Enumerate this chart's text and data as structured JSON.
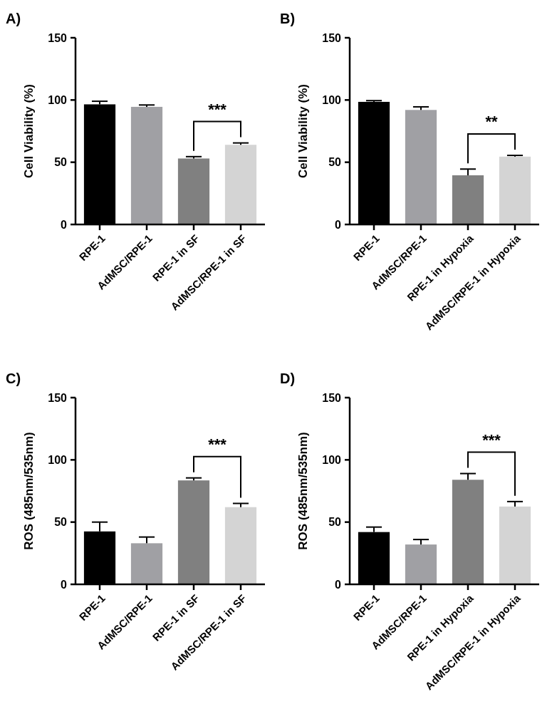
{
  "chart_data": [
    {
      "type": "bar",
      "title": "A)",
      "ylabel": "Cell Viability (%)",
      "categories": [
        "RPE-1",
        "AdMSC/RPE-1",
        "RPE-1 in SF",
        "AdMSC/RPE-1 in SF"
      ],
      "colors": [
        "#000000",
        "#a0a0a4",
        "#808080",
        "#d4d4d4"
      ],
      "values": [
        96.5,
        94.5,
        53,
        64
      ],
      "errors": [
        [
          96.5,
          99
        ],
        [
          94.5,
          96
        ],
        [
          53,
          54.5
        ],
        [
          64,
          65.5
        ]
      ],
      "ylim": [
        0,
        150
      ],
      "yticks": [
        0,
        50,
        100,
        150
      ],
      "annotations": [
        "***"
      ]
    },
    {
      "type": "bar",
      "title": "B)",
      "ylabel": "Cell Viability (%)",
      "categories": [
        "RPE-1",
        "AdMSC/RPE-1",
        "RPE-1 in Hypoxia",
        "AdMSC/RPE-1 in Hypoxia"
      ],
      "colors": [
        "#000000",
        "#a0a0a4",
        "#808080",
        "#d4d4d4"
      ],
      "values": [
        98.5,
        92,
        39.5,
        54.5
      ],
      "errors": [
        [
          98.5,
          99.5
        ],
        [
          92,
          94.5
        ],
        [
          39.5,
          44.5
        ],
        [
          54.5,
          55.5
        ]
      ],
      "ylim": [
        0,
        150
      ],
      "yticks": [
        0,
        50,
        100,
        150
      ],
      "annotations": [
        "**"
      ]
    },
    {
      "type": "bar",
      "title": "C)",
      "ylabel": "ROS (485nm/535nm)",
      "categories": [
        "RPE-1",
        "AdMSC/RPE-1",
        "RPE-1 in SF",
        "AdMSC/RPE-1 in SF"
      ],
      "colors": [
        "#000000",
        "#a0a0a4",
        "#808080",
        "#d4d4d4"
      ],
      "values": [
        42.5,
        33,
        83.5,
        62
      ],
      "errors": [
        [
          42.5,
          50
        ],
        [
          33,
          38
        ],
        [
          83.5,
          85.5
        ],
        [
          62,
          65
        ]
      ],
      "ylim": [
        0,
        150
      ],
      "yticks": [
        0,
        50,
        100,
        150
      ],
      "annotations": [
        "***"
      ]
    },
    {
      "type": "bar",
      "title": "D)",
      "ylabel": "ROS (485nm/535nm)",
      "categories": [
        "RPE-1",
        "AdMSC/RPE-1",
        "RPE-1 in Hypoxia",
        "AdMSC/RPE-1 in Hypoxia"
      ],
      "colors": [
        "#000000",
        "#a0a0a4",
        "#808080",
        "#d4d4d4"
      ],
      "values": [
        42,
        32,
        84,
        62.5
      ],
      "errors": [
        [
          42,
          46
        ],
        [
          32,
          36
        ],
        [
          84,
          89
        ],
        [
          62.5,
          66.5
        ]
      ],
      "ylim": [
        0,
        150
      ],
      "yticks": [
        0,
        50,
        100,
        150
      ],
      "annotations": [
        "***"
      ]
    }
  ]
}
